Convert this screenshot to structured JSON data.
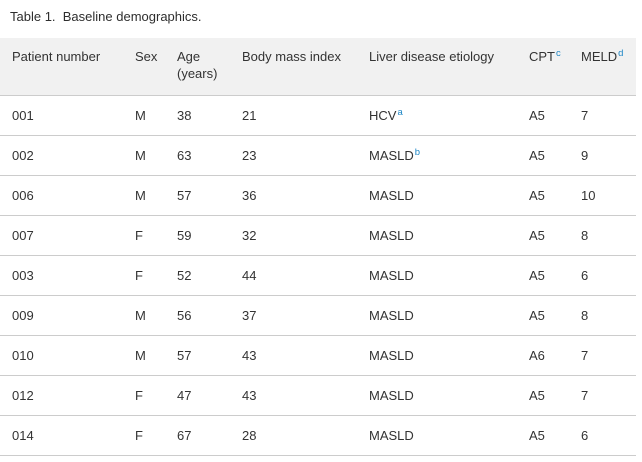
{
  "title": "Table 1.  Baseline demographics.",
  "colors": {
    "footnote_link_blue": "#1e87c6",
    "header_background": "#f1f1f1",
    "row_border": "#cccccc",
    "text": "#333333"
  },
  "table": {
    "columns": [
      {
        "label": "Patient number",
        "label2": "",
        "sup": ""
      },
      {
        "label": "Sex",
        "label2": "",
        "sup": ""
      },
      {
        "label": "Age",
        "label2": "(years)",
        "sup": ""
      },
      {
        "label": "Body mass index",
        "label2": "",
        "sup": ""
      },
      {
        "label": "Liver disease etiology",
        "label2": "",
        "sup": ""
      },
      {
        "label": "CPT",
        "label2": "",
        "sup": "c"
      },
      {
        "label": "MELD",
        "label2": "",
        "sup": "d"
      }
    ],
    "rows": [
      {
        "patient": "001",
        "sex": "M",
        "age": "38",
        "bmi": "21",
        "etiology": "HCV",
        "etiology_sup": "a",
        "cpt": "A5",
        "meld": "7"
      },
      {
        "patient": "002",
        "sex": "M",
        "age": "63",
        "bmi": "23",
        "etiology": "MASLD",
        "etiology_sup": "b",
        "cpt": "A5",
        "meld": "9"
      },
      {
        "patient": "006",
        "sex": "M",
        "age": "57",
        "bmi": "36",
        "etiology": "MASLD",
        "etiology_sup": "",
        "cpt": "A5",
        "meld": "10"
      },
      {
        "patient": "007",
        "sex": "F",
        "age": "59",
        "bmi": "32",
        "etiology": "MASLD",
        "etiology_sup": "",
        "cpt": "A5",
        "meld": "8"
      },
      {
        "patient": "003",
        "sex": "F",
        "age": "52",
        "bmi": "44",
        "etiology": "MASLD",
        "etiology_sup": "",
        "cpt": "A5",
        "meld": "6"
      },
      {
        "patient": "009",
        "sex": "M",
        "age": "56",
        "bmi": "37",
        "etiology": "MASLD",
        "etiology_sup": "",
        "cpt": "A5",
        "meld": "8"
      },
      {
        "patient": "010",
        "sex": "M",
        "age": "57",
        "bmi": "43",
        "etiology": "MASLD",
        "etiology_sup": "",
        "cpt": "A6",
        "meld": "7"
      },
      {
        "patient": "012",
        "sex": "F",
        "age": "47",
        "bmi": "43",
        "etiology": "MASLD",
        "etiology_sup": "",
        "cpt": "A5",
        "meld": "7"
      },
      {
        "patient": "014",
        "sex": "F",
        "age": "67",
        "bmi": "28",
        "etiology": "MASLD",
        "etiology_sup": "",
        "cpt": "A5",
        "meld": "6"
      }
    ]
  }
}
